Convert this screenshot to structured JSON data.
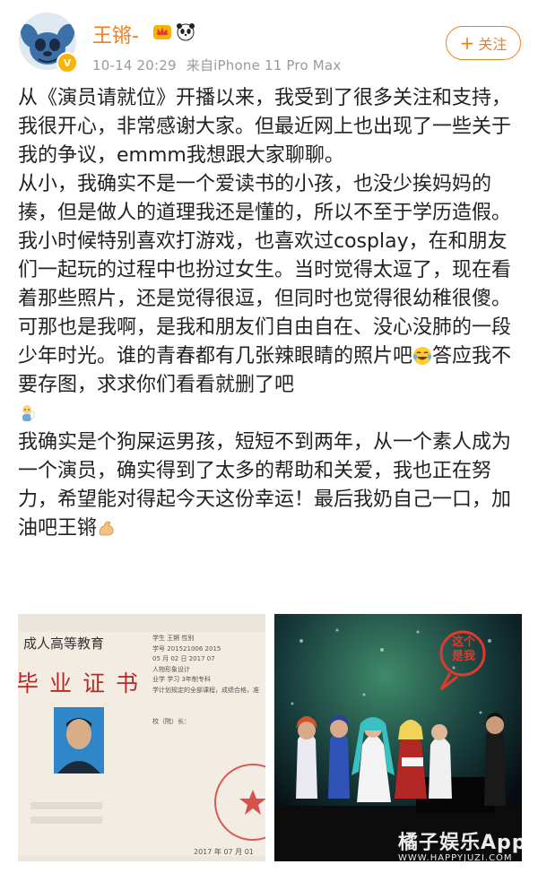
{
  "user": {
    "name": "王锵-",
    "timestamp": "10-14 20:29",
    "source": "来自iPhone 11 Pro Max"
  },
  "follow_button": {
    "label": "关注"
  },
  "post": {
    "paragraphs": [
      "从《演员请就位》开播以来，我受到了很多关注和支持，我很开心，非常感谢大家。但最近网上也出现了一些关于我的争议，emmm我想跟大家聊聊。",
      "从小，我确实不是一个爱读书的小孩，也没少挨妈妈的揍，但是做人的道理我还是懂的，所以不至于学历造假。",
      "我小时候特别喜欢打游戏，也喜欢过cosplay，在和朋友们一起玩的过程中也扮过女生。当时觉得太逗了，现在看着那些照片，还是觉得很逗，但同时也觉得很幼稚很傻。可那也是我啊，是我和朋友们自由自在、没心没肺的一段少年时光。谁的青春都有几张辣眼睛的照片吧",
      "答应我不要存图，求求你们看看就删了吧",
      "我确实是个狗屎运男孩，短短不到两年，从一个素人成为一个演员，确实得到了太多的帮助和关爱，我也正在努力，希望能对得起今天这份幸运！最后我奶自己一口，加油吧王锵"
    ]
  },
  "image1": {
    "heading_top": "成人高等教育",
    "heading_main": "毕业证书",
    "info_lines": [
      "学生 王锵 性别",
      "学号 201521006 2015",
      "05 月 02 日 2017 07",
      "人物形象设计",
      "业学 学习 3年制专科",
      "学计划规定的全部课程，成绩合格，准",
      "校（院）长："
    ],
    "date": "2017 年 07 月 01"
  },
  "image2": {
    "sign": "这个是我"
  },
  "watermark": {
    "main": "橘子娱乐App",
    "sub": "WWW.HAPPYJUZI.COM"
  },
  "colors": {
    "accent": "#f07e1c",
    "text": "#222222",
    "meta": "#9a9a9a"
  }
}
